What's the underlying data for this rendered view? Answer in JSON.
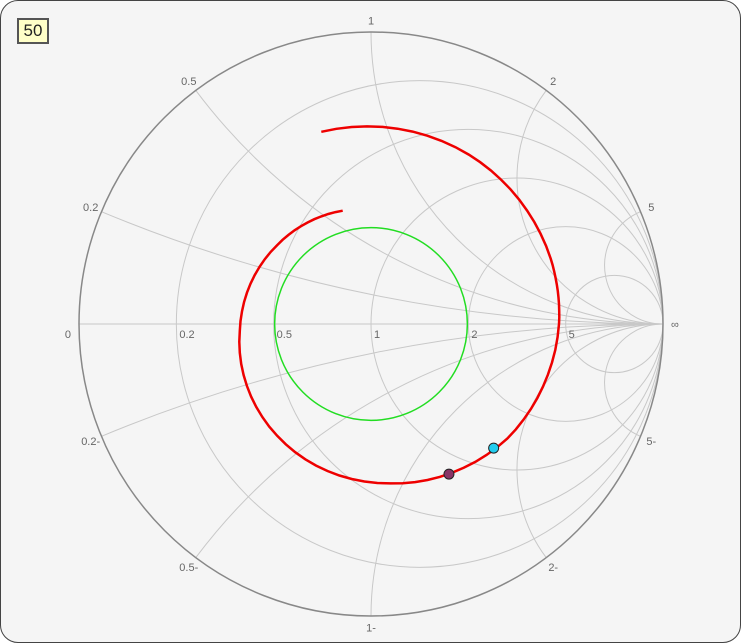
{
  "impedance_box": "50",
  "chart_data": {
    "type": "smith",
    "reference_impedance": "50",
    "resistance_circles": [
      0.2,
      0.5,
      1,
      2,
      5
    ],
    "reactance_arcs": [
      0.2,
      0.5,
      1,
      2,
      5,
      -0.2,
      -0.5,
      -1,
      -2,
      -5
    ],
    "resistance_labels": [
      "0",
      "0.2",
      "0.5",
      "1",
      "2",
      "5",
      "∞"
    ],
    "reactance_labels": {
      "0.2": "0.2",
      "0.5": "0.5",
      "1": "1",
      "2": "2",
      "5": "5",
      "-0.2": "0.2-",
      "-0.5": "0.5-",
      "-1": "1-",
      "-2": "2-",
      "-5": "5-"
    },
    "vswr_circle": {
      "gamma_magnitude": 0.33,
      "color": "#22dd22"
    },
    "trace": {
      "color": "#ee0000",
      "polar_points": [
        [
          104.5,
          0.68
        ],
        [
          60,
          0.67
        ],
        [
          20,
          0.655
        ],
        [
          0,
          0.644
        ],
        [
          -40,
          0.61
        ],
        [
          -83,
          0.55
        ],
        [
          -130,
          0.5
        ],
        [
          -177,
          0.45
        ],
        [
          -220,
          0.42
        ],
        [
          -256,
          0.4
        ]
      ]
    },
    "markers": [
      {
        "gamma": [
          0.42,
          -0.425
        ],
        "color": "#22ccee"
      },
      {
        "gamma": [
          0.267,
          -0.514
        ],
        "color": "#883366"
      }
    ],
    "grid": true
  }
}
